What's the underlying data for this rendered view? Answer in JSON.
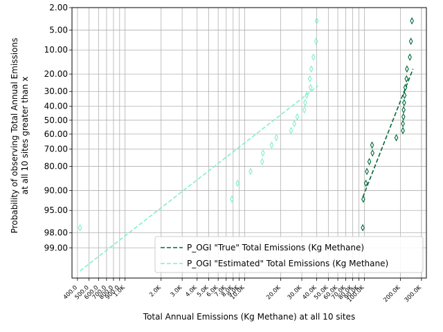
{
  "chart_data": {
    "type": "scatter",
    "title": "",
    "xlabel": "Total Annual Emissions (Kg Methane) at all 10 sites",
    "ylabel_lines": [
      "Probability of observing Total Annual Emissions",
      "at all 10 sites greater than x"
    ],
    "x_scale": "log",
    "y_scale": "normal-probability",
    "xlim": [
      360,
      330000
    ],
    "ylim": [
      2.0,
      99.8
    ],
    "grid": true,
    "legend_placement": "lower-right",
    "x_ticks": [
      {
        "value": 400,
        "label": "400.0"
      },
      {
        "value": 500,
        "label": "500.0"
      },
      {
        "value": 600,
        "label": "600.0"
      },
      {
        "value": 700,
        "label": "700.0"
      },
      {
        "value": 800,
        "label": "800.0"
      },
      {
        "value": 900,
        "label": "900.0"
      },
      {
        "value": 1000,
        "label": "1.0K"
      },
      {
        "value": 2000,
        "label": "2.0K"
      },
      {
        "value": 3000,
        "label": "3.0K"
      },
      {
        "value": 4000,
        "label": "4.0K"
      },
      {
        "value": 5000,
        "label": "5.0K"
      },
      {
        "value": 6000,
        "label": "6.0K"
      },
      {
        "value": 7000,
        "label": "7.0K"
      },
      {
        "value": 8000,
        "label": "8.0K"
      },
      {
        "value": 9000,
        "label": "9.0K"
      },
      {
        "value": 10000,
        "label": "10.0K"
      },
      {
        "value": 20000,
        "label": "20.0K"
      },
      {
        "value": 30000,
        "label": "30.0K"
      },
      {
        "value": 40000,
        "label": "40.0K"
      },
      {
        "value": 50000,
        "label": "50.0K"
      },
      {
        "value": 60000,
        "label": "60.0K"
      },
      {
        "value": 70000,
        "label": "70.0K"
      },
      {
        "value": 80000,
        "label": "80.0K"
      },
      {
        "value": 90000,
        "label": "90.0K"
      },
      {
        "value": 100000,
        "label": "100.0K"
      },
      {
        "value": 200000,
        "label": "200.0K"
      },
      {
        "value": 300000,
        "label": "300.0K"
      }
    ],
    "y_ticks": [
      {
        "value": 2,
        "label": "2.00"
      },
      {
        "value": 5,
        "label": "5.00"
      },
      {
        "value": 10,
        "label": "10.00"
      },
      {
        "value": 20,
        "label": "20.00"
      },
      {
        "value": 30,
        "label": "30.00"
      },
      {
        "value": 40,
        "label": "40.00"
      },
      {
        "value": 50,
        "label": "50.00"
      },
      {
        "value": 60,
        "label": "60.00"
      },
      {
        "value": 70,
        "label": "70.00"
      },
      {
        "value": 80,
        "label": "80.00"
      },
      {
        "value": 90,
        "label": "90.00"
      },
      {
        "value": 95,
        "label": "95.00"
      },
      {
        "value": 98,
        "label": "98.00"
      },
      {
        "value": 99,
        "label": "99.00"
      }
    ],
    "series": [
      {
        "name": "P_OGI \"True\" Total Emissions (Kg Methane)",
        "color": "#006837",
        "marker": "thin-diamond",
        "points": [
          {
            "x": 97000,
            "y": 97.5
          },
          {
            "x": 98000,
            "y": 92.5
          },
          {
            "x": 103000,
            "y": 87.5
          },
          {
            "x": 105000,
            "y": 82.5
          },
          {
            "x": 110000,
            "y": 77.5
          },
          {
            "x": 117000,
            "y": 72.5
          },
          {
            "x": 116000,
            "y": 67.5
          },
          {
            "x": 185000,
            "y": 62.5
          },
          {
            "x": 210000,
            "y": 57.5
          },
          {
            "x": 210000,
            "y": 52.5
          },
          {
            "x": 212000,
            "y": 47.5
          },
          {
            "x": 213000,
            "y": 42.5
          },
          {
            "x": 215000,
            "y": 37.5
          },
          {
            "x": 217000,
            "y": 32.5
          },
          {
            "x": 220000,
            "y": 27.5
          },
          {
            "x": 225000,
            "y": 22.5
          },
          {
            "x": 227000,
            "y": 17.5
          },
          {
            "x": 240000,
            "y": 12.5
          },
          {
            "x": 245000,
            "y": 7.5
          },
          {
            "x": 250000,
            "y": 3.5
          }
        ]
      },
      {
        "name": "P_OGI \"Estimated\" Total Emissions (Kg Methane)",
        "color": "#7ff0c8",
        "marker": "thin-diamond",
        "points": [
          {
            "x": 420,
            "y": 97.5
          },
          {
            "x": 7800,
            "y": 92.5
          },
          {
            "x": 8700,
            "y": 87.5
          },
          {
            "x": 11200,
            "y": 82.5
          },
          {
            "x": 14000,
            "y": 77.5
          },
          {
            "x": 14200,
            "y": 72.5
          },
          {
            "x": 16800,
            "y": 67.5
          },
          {
            "x": 18400,
            "y": 62.5
          },
          {
            "x": 24400,
            "y": 57.5
          },
          {
            "x": 26000,
            "y": 52.5
          },
          {
            "x": 27500,
            "y": 47.5
          },
          {
            "x": 31500,
            "y": 42.5
          },
          {
            "x": 32000,
            "y": 37.5
          },
          {
            "x": 33000,
            "y": 32.5
          },
          {
            "x": 35500,
            "y": 27.5
          },
          {
            "x": 35000,
            "y": 22.5
          },
          {
            "x": 36000,
            "y": 17.5
          },
          {
            "x": 37500,
            "y": 12.5
          },
          {
            "x": 39500,
            "y": 7.5
          },
          {
            "x": 40000,
            "y": 3.5
          }
        ]
      }
    ],
    "fit_lines": [
      {
        "series": 0,
        "style": "dashed",
        "x": [
          97000,
          255000
        ],
        "y": [
          92.0,
          17.5
        ]
      },
      {
        "series": 1,
        "style": "dashed",
        "x": [
          420,
          41000
        ],
        "y": [
          99.7,
          26.5
        ]
      }
    ]
  }
}
